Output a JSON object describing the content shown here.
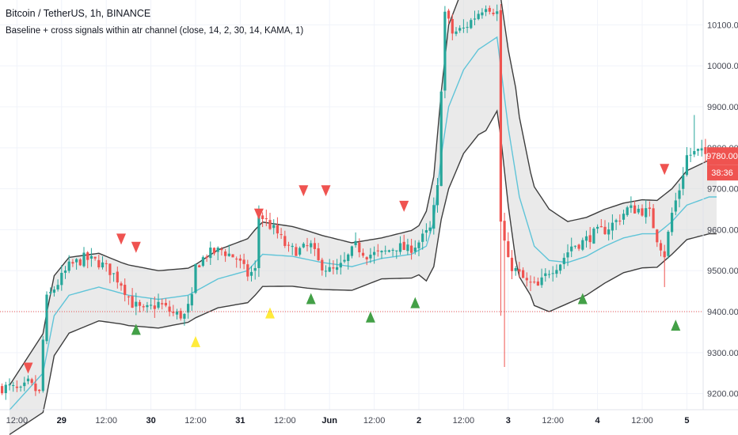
{
  "header": {
    "symbol_line": "Bitcoin / TetherUS, 1h, BINANCE",
    "indicator_line": "Baseline + cross signals within atr channel (close, 14, 2, 30, 14, KAMA, 1)"
  },
  "price_axis": {
    "ticks": [
      "10100.00",
      "10000.00",
      "9900.00",
      "9800.00",
      "9700.00",
      "9600.00",
      "9500.00",
      "9400.00",
      "9300.00",
      "9200.00"
    ],
    "last_price_label": "9780.00",
    "countdown_label": "38:36"
  },
  "time_axis": {
    "labels": [
      "12:00",
      "29",
      "12:00",
      "30",
      "12:00",
      "31",
      "12:00",
      "Jun",
      "12:00",
      "2",
      "12:00",
      "3",
      "12:00",
      "4",
      "12:00",
      "5"
    ]
  },
  "colors": {
    "up": "#26a69a",
    "down": "#ef5350",
    "baseline": "#5fc4d8",
    "channel": "#3d3d3d",
    "channel_fill": "#d9d9d9",
    "buy_signal": "#43a047",
    "sell_signal": "#ef5350",
    "cross_signal": "#ffeb3b",
    "price_line": "#ef5350"
  },
  "chart_data": {
    "type": "candlestick",
    "x_unit": "hour offset from 28 May 10:00",
    "y_unit": "price (USDT)",
    "ylim": [
      9180,
      10180
    ],
    "xlim": [
      -4,
      198
    ],
    "reference_price": 9400,
    "last_price": 9780,
    "x_ticks": [
      {
        "x": 2,
        "label": "12:00"
      },
      {
        "x": 14,
        "label": "29"
      },
      {
        "x": 26,
        "label": "12:00"
      },
      {
        "x": 38,
        "label": "30"
      },
      {
        "x": 50,
        "label": "12:00"
      },
      {
        "x": 62,
        "label": "31"
      },
      {
        "x": 74,
        "label": "12:00"
      },
      {
        "x": 86,
        "label": "Jun"
      },
      {
        "x": 98,
        "label": "12:00"
      },
      {
        "x": 110,
        "label": "2"
      },
      {
        "x": 122,
        "label": "12:00"
      },
      {
        "x": 134,
        "label": "3"
      },
      {
        "x": 146,
        "label": "12:00"
      },
      {
        "x": 158,
        "label": "4"
      },
      {
        "x": 170,
        "label": "12:00"
      },
      {
        "x": 182,
        "label": "5"
      }
    ],
    "y_ticks": [
      10100,
      10000,
      9900,
      9800,
      9700,
      9600,
      9500,
      9400,
      9300,
      9200
    ],
    "close_anchors": [
      [
        0,
        9215
      ],
      [
        3,
        9205
      ],
      [
        5,
        9225
      ],
      [
        8,
        9200
      ],
      [
        9,
        9330
      ],
      [
        10,
        9430
      ],
      [
        13,
        9470
      ],
      [
        16,
        9510
      ],
      [
        20,
        9530
      ],
      [
        24,
        9520
      ],
      [
        27,
        9500
      ],
      [
        30,
        9470
      ],
      [
        33,
        9420
      ],
      [
        36,
        9400
      ],
      [
        40,
        9420
      ],
      [
        44,
        9395
      ],
      [
        47,
        9390
      ],
      [
        49,
        9430
      ],
      [
        50,
        9510
      ],
      [
        53,
        9540
      ],
      [
        57,
        9550
      ],
      [
        61,
        9530
      ],
      [
        64,
        9490
      ],
      [
        66,
        9500
      ],
      [
        67,
        9640
      ],
      [
        69,
        9620
      ],
      [
        72,
        9590
      ],
      [
        75,
        9550
      ],
      [
        78,
        9550
      ],
      [
        81,
        9560
      ],
      [
        83,
        9520
      ],
      [
        86,
        9500
      ],
      [
        88,
        9500
      ],
      [
        90,
        9520
      ],
      [
        93,
        9560
      ],
      [
        96,
        9540
      ],
      [
        100,
        9540
      ],
      [
        104,
        9560
      ],
      [
        107,
        9550
      ],
      [
        110,
        9570
      ],
      [
        113,
        9600
      ],
      [
        115,
        9700
      ],
      [
        116,
        9950
      ],
      [
        117,
        10130
      ],
      [
        119,
        10080
      ],
      [
        122,
        10090
      ],
      [
        125,
        10120
      ],
      [
        128,
        10150
      ],
      [
        131,
        10130
      ],
      [
        132,
        9620
      ],
      [
        134,
        9520
      ],
      [
        136,
        9500
      ],
      [
        139,
        9470
      ],
      [
        142,
        9460
      ],
      [
        145,
        9500
      ],
      [
        148,
        9520
      ],
      [
        151,
        9560
      ],
      [
        154,
        9570
      ],
      [
        157,
        9590
      ],
      [
        160,
        9600
      ],
      [
        163,
        9620
      ],
      [
        166,
        9650
      ],
      [
        169,
        9650
      ],
      [
        172,
        9640
      ],
      [
        174,
        9580
      ],
      [
        176,
        9540
      ],
      [
        178,
        9640
      ],
      [
        180,
        9700
      ],
      [
        182,
        9780
      ],
      [
        185,
        9790
      ],
      [
        188,
        9780
      ]
    ],
    "baseline_anchors": [
      [
        0,
        9160
      ],
      [
        9,
        9250
      ],
      [
        12,
        9390
      ],
      [
        16,
        9440
      ],
      [
        24,
        9460
      ],
      [
        32,
        9440
      ],
      [
        40,
        9430
      ],
      [
        48,
        9440
      ],
      [
        56,
        9480
      ],
      [
        64,
        9500
      ],
      [
        68,
        9540
      ],
      [
        76,
        9535
      ],
      [
        84,
        9520
      ],
      [
        92,
        9510
      ],
      [
        100,
        9530
      ],
      [
        108,
        9540
      ],
      [
        112,
        9560
      ],
      [
        114,
        9620
      ],
      [
        116,
        9780
      ],
      [
        118,
        9900
      ],
      [
        122,
        9990
      ],
      [
        126,
        10040
      ],
      [
        131,
        10070
      ],
      [
        134,
        9850
      ],
      [
        137,
        9680
      ],
      [
        141,
        9560
      ],
      [
        145,
        9525
      ],
      [
        150,
        9520
      ],
      [
        155,
        9535
      ],
      [
        160,
        9560
      ],
      [
        165,
        9580
      ],
      [
        170,
        9590
      ],
      [
        174,
        9590
      ],
      [
        178,
        9620
      ],
      [
        182,
        9660
      ],
      [
        188,
        9680
      ]
    ],
    "band_half_width_anchors": [
      [
        0,
        60
      ],
      [
        10,
        100
      ],
      [
        30,
        75
      ],
      [
        50,
        65
      ],
      [
        66,
        80
      ],
      [
        80,
        70
      ],
      [
        100,
        50
      ],
      [
        110,
        60
      ],
      [
        114,
        110
      ],
      [
        118,
        200
      ],
      [
        128,
        210
      ],
      [
        132,
        170
      ],
      [
        136,
        210
      ],
      [
        140,
        150
      ],
      [
        150,
        100
      ],
      [
        165,
        85
      ],
      [
        178,
        80
      ],
      [
        188,
        90
      ]
    ],
    "sell_signals": [
      {
        "x": 5,
        "price": 9262
      },
      {
        "x": 30,
        "price": 9577
      },
      {
        "x": 34,
        "price": 9557
      },
      {
        "x": 67,
        "price": 9638
      },
      {
        "x": 79,
        "price": 9695
      },
      {
        "x": 85,
        "price": 9695
      },
      {
        "x": 106,
        "price": 9657
      },
      {
        "x": 176,
        "price": 9747
      }
    ],
    "buy_signals": [
      {
        "x": 34,
        "price": 9357
      },
      {
        "x": 81,
        "price": 9432
      },
      {
        "x": 97,
        "price": 9387
      },
      {
        "x": 109,
        "price": 9422
      },
      {
        "x": 154,
        "price": 9432
      },
      {
        "x": 179,
        "price": 9367
      }
    ],
    "cross_signals": [
      {
        "x": 50,
        "price": 9327
      },
      {
        "x": 70,
        "price": 9397
      }
    ]
  }
}
